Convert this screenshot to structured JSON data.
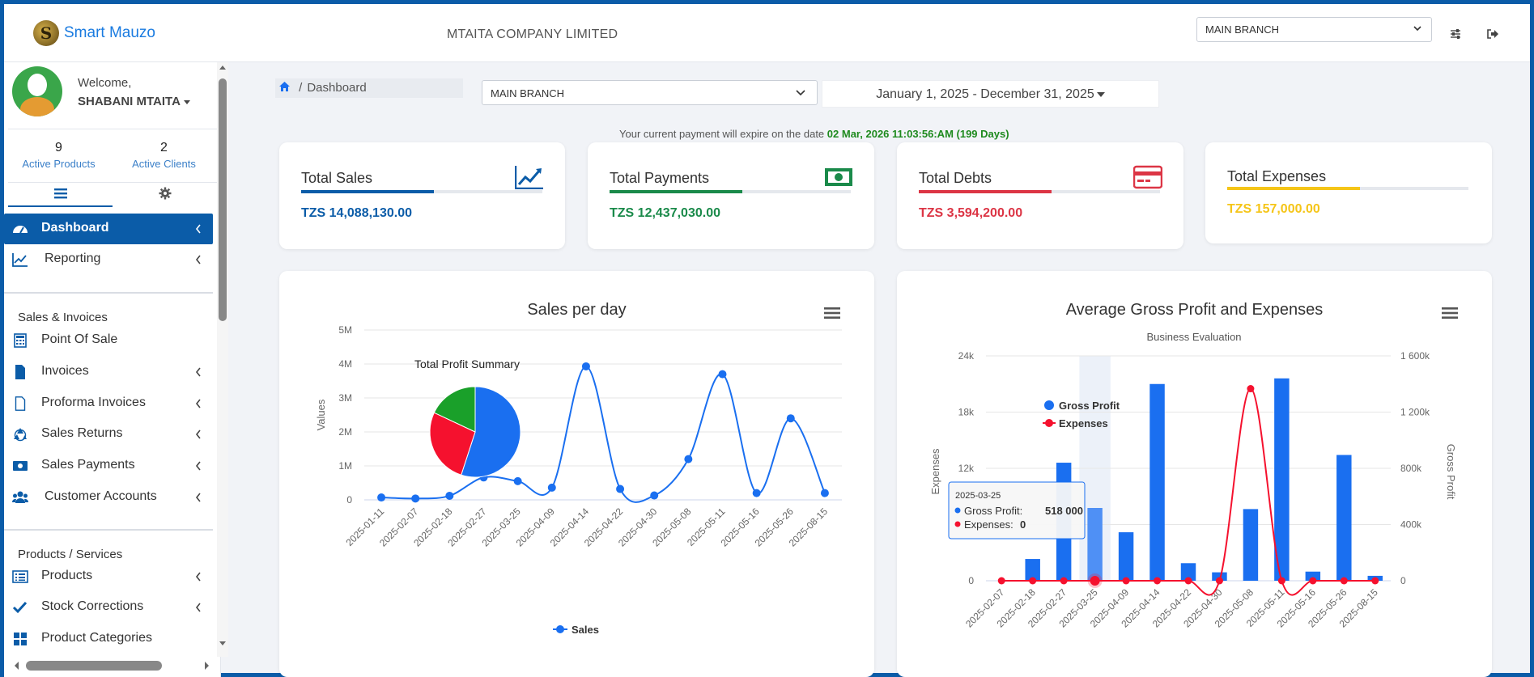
{
  "app": {
    "brand_name": "Smart Mauzo",
    "brand_letter": "S",
    "company_name": "MTAITA COMPANY LIMITED",
    "top_branch": "MAIN BRANCH"
  },
  "user": {
    "welcome": "Welcome,",
    "name": "SHABANI MTAITA"
  },
  "stats": {
    "products_count": "9",
    "products_label": "Active Products",
    "clients_count": "2",
    "clients_label": "Active Clients"
  },
  "sidebar": {
    "dashboard": "Dashboard",
    "reporting": "Reporting",
    "section_sales": "Sales & Invoices",
    "pos": "Point Of Sale",
    "invoices": "Invoices",
    "proforma": "Proforma Invoices",
    "returns": "Sales Returns",
    "payments": "Sales Payments",
    "customer_accounts": "Customer Accounts",
    "section_products": "Products / Services",
    "products": "Products",
    "stock": "Stock Corrections",
    "categories": "Product Categories"
  },
  "main": {
    "breadcrumb_sep": "/",
    "breadcrumb": "Dashboard",
    "branch": "MAIN BRANCH",
    "date_range": "January 1, 2025 - December 31, 2025",
    "expiry_prefix": "Your current payment will expire on the date",
    "expiry_value": "02 Mar, 2026 11:03:56:AM (199 Days)"
  },
  "cards": [
    {
      "title": "Total Sales",
      "value": "TZS 14,088,130.00",
      "color": "#0b5ca8",
      "fill": 0.55
    },
    {
      "title": "Total Payments",
      "value": "TZS 12,437,030.00",
      "color": "#1a8a4a",
      "fill": 0.55
    },
    {
      "title": "Total Debts",
      "value": "TZS 3,594,200.00",
      "color": "#dc3545",
      "fill": 0.55
    },
    {
      "title": "Total Expenses",
      "value": "TZS 157,000.00",
      "color": "#f5c518",
      "fill": 0.55
    }
  ],
  "chart_data": [
    {
      "type": "line",
      "title": "Sales per day",
      "ylabel": "Values",
      "ylim": [
        0,
        5000000
      ],
      "yticks": [
        "0",
        "1M",
        "2M",
        "3M",
        "4M",
        "5M"
      ],
      "categories": [
        "2025-01-11",
        "2025-02-07",
        "2025-02-18",
        "2025-02-27",
        "2025-03-25",
        "2025-04-09",
        "2025-04-14",
        "2025-04-22",
        "2025-04-30",
        "2025-05-08",
        "2025-05-11",
        "2025-05-16",
        "2025-05-26",
        "2025-08-15"
      ],
      "series": [
        {
          "name": "Sales",
          "color": "#1a6ff0",
          "values": [
            70000,
            40000,
            120000,
            660000,
            550000,
            360000,
            3930000,
            320000,
            130000,
            1200000,
            3700000,
            200000,
            2400000,
            200000
          ]
        }
      ],
      "inset": {
        "type": "pie",
        "title": "Total Profit Summary",
        "values": [
          0.55,
          0.27,
          0.18
        ],
        "colors": [
          "#1a6ff0",
          "#f5112e",
          "#1aa02a"
        ]
      }
    },
    {
      "type": "bar",
      "title": "Average Gross Profit and Expenses",
      "subtitle": "Business Evaluation",
      "y_left_label": "Expenses",
      "y_left_ticks": [
        "0",
        "6k",
        "12k",
        "18k",
        "24k"
      ],
      "y_right_label": "Gross Profit",
      "y_right_ticks": [
        "0",
        "400k",
        "800k",
        "1 200k",
        "1 600k"
      ],
      "categories": [
        "2025-02-07",
        "2025-02-18",
        "2025-02-27",
        "2025-03-25",
        "2025-04-09",
        "2025-04-14",
        "2025-04-22",
        "2025-04-30",
        "2025-05-08",
        "2025-05-11",
        "2025-05-16",
        "2025-05-26",
        "2025-08-15"
      ],
      "series": [
        {
          "name": "Gross Profit",
          "type": "bar",
          "color": "#1a6ff0",
          "axis": "right",
          "values": [
            0,
            155000,
            840000,
            518000,
            345000,
            1400000,
            125000,
            60000,
            510000,
            1440000,
            65000,
            895000,
            35000
          ]
        },
        {
          "name": "Expenses",
          "type": "spline",
          "color": "#f5112e",
          "axis": "left",
          "values": [
            0,
            0,
            0,
            0,
            0,
            0,
            0,
            0,
            20500,
            0,
            0,
            0,
            0
          ]
        }
      ],
      "tooltip": {
        "date": "2025-03-25",
        "gp_label": "Gross Profit:",
        "gp_value": "518 000",
        "ex_label": "Expenses:",
        "ex_value": "0"
      }
    }
  ]
}
